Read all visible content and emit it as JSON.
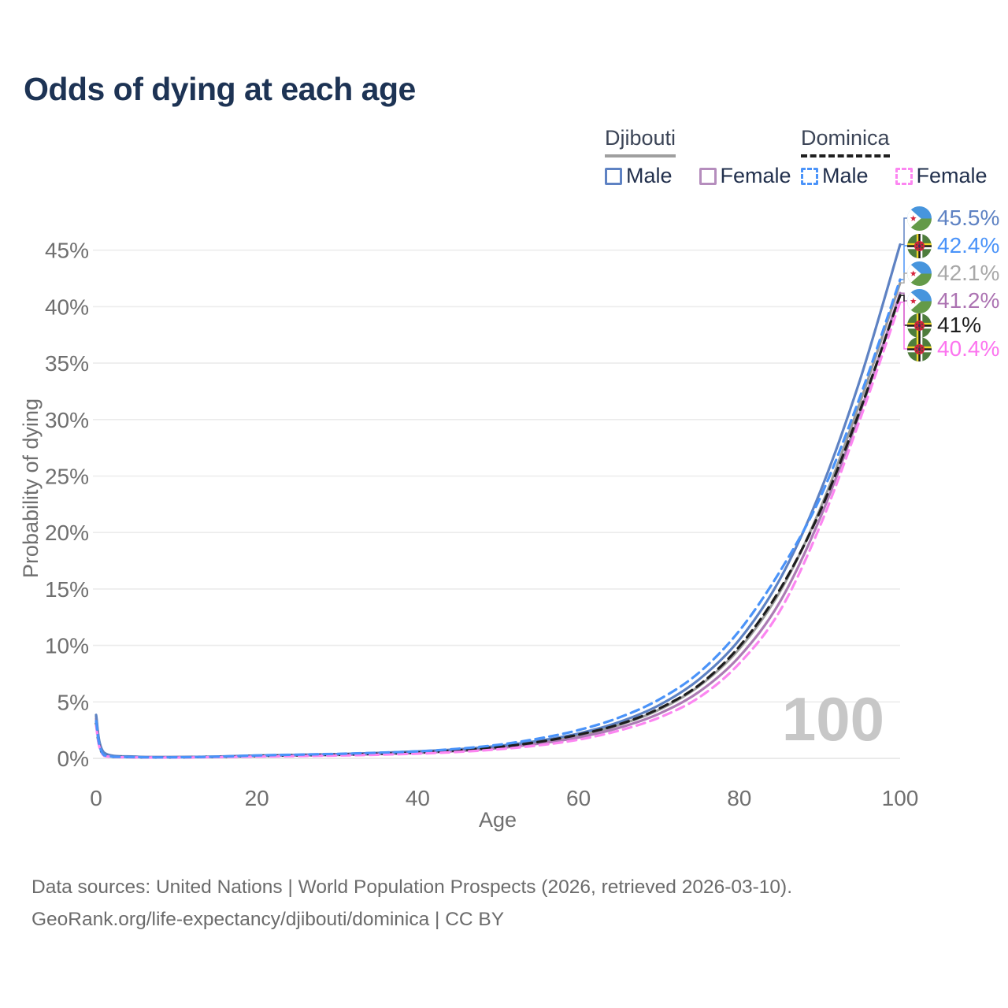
{
  "header": {
    "title": "Odds of dying at each age"
  },
  "legend": {
    "groups": [
      {
        "name": "Djibouti",
        "line_style": "solid",
        "items": [
          {
            "label": "Male",
            "color": "#5e82c3",
            "dashed": false
          },
          {
            "label": "Female",
            "color": "#b58dbd",
            "dashed": false
          }
        ]
      },
      {
        "name": "Dominica",
        "line_style": "dashed",
        "items": [
          {
            "label": "Male",
            "color": "#4a93f9",
            "dashed": true
          },
          {
            "label": "Female",
            "color": "#fc86f1",
            "dashed": true
          }
        ]
      }
    ]
  },
  "chart_data": {
    "type": "line",
    "title": "Odds of dying at each age",
    "xlabel": "Age",
    "ylabel": "Probability of dying",
    "xlim": [
      0,
      100
    ],
    "ylim": [
      0,
      47.5
    ],
    "xticks": [
      0,
      20,
      40,
      60,
      80,
      100
    ],
    "yticks": [
      0,
      5,
      10,
      15,
      20,
      25,
      30,
      35,
      40,
      45
    ],
    "ytick_suffix": "%",
    "grid": true,
    "legend_position": "top-right",
    "hover_age_watermark": "100",
    "x": [
      0,
      1,
      5,
      10,
      15,
      20,
      25,
      30,
      35,
      40,
      45,
      50,
      55,
      60,
      65,
      70,
      75,
      80,
      85,
      90,
      95,
      100
    ],
    "series": [
      {
        "name": "Djibouti Both sexes",
        "country": "Djibouti",
        "sex": "Both",
        "color": "#9b9b9b",
        "dash": false,
        "values": [
          3.7,
          0.45,
          0.14,
          0.115,
          0.145,
          0.23,
          0.285,
          0.345,
          0.43,
          0.55,
          0.72,
          1.0,
          1.42,
          2.0,
          2.95,
          4.3,
          6.4,
          9.7,
          14.7,
          22.0,
          31.5,
          42.1
        ]
      },
      {
        "name": "Djibouti Female",
        "country": "Djibouti",
        "sex": "Female",
        "color": "#ac7bb4",
        "dash": false,
        "values": [
          3.5,
          0.42,
          0.13,
          0.11,
          0.13,
          0.21,
          0.26,
          0.31,
          0.38,
          0.48,
          0.65,
          0.9,
          1.3,
          1.85,
          2.7,
          3.95,
          5.9,
          9.0,
          13.8,
          21.2,
          30.6,
          41.2
        ]
      },
      {
        "name": "Djibouti Male",
        "country": "Djibouti",
        "sex": "Male",
        "color": "#5e82c3",
        "dash": false,
        "values": [
          3.85,
          0.5,
          0.15,
          0.12,
          0.16,
          0.25,
          0.31,
          0.38,
          0.48,
          0.62,
          0.8,
          1.1,
          1.55,
          2.2,
          3.2,
          4.7,
          7.0,
          10.5,
          15.8,
          23.5,
          33.5,
          45.5
        ]
      },
      {
        "name": "Dominica Both sexes",
        "country": "Dominica",
        "sex": "Both",
        "color": "#1e1e1e",
        "dash": true,
        "values": [
          3.1,
          0.25,
          0.1,
          0.09,
          0.13,
          0.21,
          0.27,
          0.33,
          0.41,
          0.52,
          0.71,
          1.0,
          1.45,
          2.1,
          3.0,
          4.4,
          6.5,
          9.9,
          14.9,
          21.8,
          30.8,
          41.0
        ]
      },
      {
        "name": "Dominica Female",
        "country": "Dominica",
        "sex": "Female",
        "color": "#fc86f1",
        "dash": true,
        "values": [
          2.9,
          0.22,
          0.09,
          0.08,
          0.11,
          0.16,
          0.2,
          0.25,
          0.32,
          0.42,
          0.57,
          0.8,
          1.15,
          1.65,
          2.45,
          3.6,
          5.4,
          8.4,
          13.0,
          20.5,
          30.0,
          40.4
        ]
      },
      {
        "name": "Dominica Male",
        "country": "Dominica",
        "sex": "Male",
        "color": "#4a93f9",
        "dash": true,
        "values": [
          3.3,
          0.28,
          0.11,
          0.1,
          0.15,
          0.26,
          0.33,
          0.4,
          0.5,
          0.62,
          0.85,
          1.2,
          1.75,
          2.5,
          3.6,
          5.2,
          7.6,
          11.3,
          16.5,
          23.0,
          32.0,
          42.4
        ]
      }
    ],
    "end_labels": [
      {
        "text": "45.5%",
        "value": 45.5,
        "series": "Djibouti Male",
        "flag": "djibouti",
        "color": "#5e82c3"
      },
      {
        "text": "42.4%",
        "value": 42.4,
        "series": "Dominica Male",
        "flag": "dominica",
        "color": "#4a93f9"
      },
      {
        "text": "42.1%",
        "value": 42.1,
        "series": "Djibouti Both sexes",
        "flag": "djibouti",
        "color": "#a8a8a8"
      },
      {
        "text": "41.2%",
        "value": 41.2,
        "series": "Djibouti Female",
        "flag": "djibouti",
        "color": "#ac73b2"
      },
      {
        "text": "41%",
        "value": 41.0,
        "series": "Dominica Both sexes",
        "flag": "dominica",
        "color": "#1e1e1e"
      },
      {
        "text": "40.4%",
        "value": 40.4,
        "series": "Dominica Female",
        "flag": "dominica",
        "color": "#fc74ef"
      }
    ]
  },
  "footer": {
    "line1": "Data sources: United Nations | World Population Prospects (2026, retrieved 2026-03-10).",
    "line2": "GeoRank.org/life-expectancy/djibouti/dominica | CC BY"
  },
  "colors": {
    "title_text": "#1d3354",
    "axis_text": "#6f6f6f",
    "gridline": "#ececec",
    "watermark": "#c7c7c7",
    "footer_text": "#6b6b6b"
  }
}
